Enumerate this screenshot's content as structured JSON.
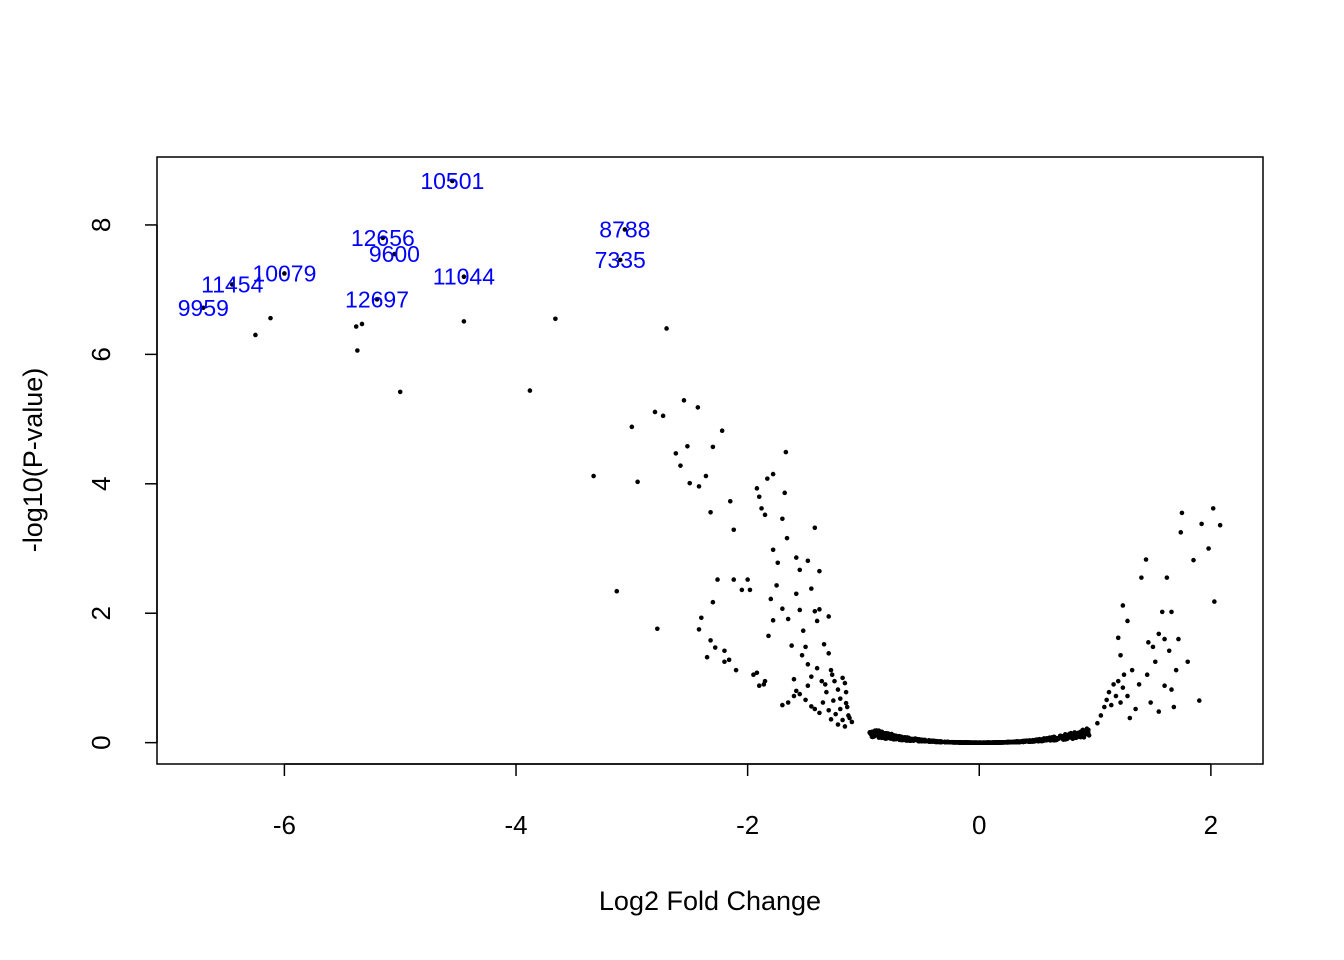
{
  "chart_data": {
    "type": "scatter",
    "title": "",
    "xlabel": "Log2 Fold Change",
    "ylabel": "-log10(P-value)",
    "xlim": [
      -7.1,
      2.45
    ],
    "ylim": [
      -0.33,
      9.05
    ],
    "x_ticks": [
      -6,
      -4,
      -2,
      0,
      2
    ],
    "x_tick_labels": [
      "-6",
      "-4",
      "-2",
      "0",
      "2"
    ],
    "y_ticks": [
      0,
      2,
      4,
      6,
      8
    ],
    "y_tick_labels": [
      "0",
      "2",
      "4",
      "6",
      "8"
    ],
    "grid": false,
    "legend": "none",
    "point_color": "#000000",
    "label_color": "#0000ff",
    "labeled_points": [
      {
        "label": "10501",
        "x": -4.55,
        "y": 8.68
      },
      {
        "label": "8788",
        "x": -3.06,
        "y": 7.93
      },
      {
        "label": "12656",
        "x": -5.15,
        "y": 7.8
      },
      {
        "label": "9600",
        "x": -5.05,
        "y": 7.55
      },
      {
        "label": "7335",
        "x": -3.1,
        "y": 7.46
      },
      {
        "label": "10079",
        "x": -6.0,
        "y": 7.25
      },
      {
        "label": "11044",
        "x": -4.45,
        "y": 7.2
      },
      {
        "label": "11454",
        "x": -6.45,
        "y": 7.08
      },
      {
        "label": "12697",
        "x": -5.2,
        "y": 6.85
      },
      {
        "label": "9959",
        "x": -6.7,
        "y": 6.72
      }
    ],
    "scatter_points": [
      [
        -6.25,
        6.3
      ],
      [
        -6.12,
        6.56
      ],
      [
        -5.38,
        6.43
      ],
      [
        -5.33,
        6.47
      ],
      [
        -5.37,
        6.06
      ],
      [
        -5.0,
        5.42
      ],
      [
        -4.45,
        6.51
      ],
      [
        -3.88,
        5.44
      ],
      [
        -3.66,
        6.55
      ],
      [
        -3.33,
        4.12
      ],
      [
        -3.13,
        2.34
      ],
      [
        -3.0,
        4.88
      ],
      [
        -2.95,
        4.03
      ],
      [
        -2.8,
        5.11
      ],
      [
        -2.73,
        5.05
      ],
      [
        -2.7,
        6.4
      ],
      [
        -2.78,
        1.76
      ],
      [
        -2.62,
        4.47
      ],
      [
        -2.55,
        5.29
      ],
      [
        -2.52,
        4.58
      ],
      [
        -2.58,
        4.28
      ],
      [
        -2.5,
        4.01
      ],
      [
        -2.43,
        5.18
      ],
      [
        -2.42,
        3.96
      ],
      [
        -2.36,
        4.12
      ],
      [
        -2.3,
        4.57
      ],
      [
        -2.22,
        4.82
      ],
      [
        -2.32,
        3.56
      ],
      [
        -2.15,
        3.73
      ],
      [
        -2.12,
        3.29
      ],
      [
        -1.92,
        3.93
      ],
      [
        -1.9,
        3.8
      ],
      [
        -1.88,
        3.62
      ],
      [
        -1.85,
        3.52
      ],
      [
        -1.83,
        4.08
      ],
      [
        -1.78,
        4.15
      ],
      [
        -1.67,
        4.49
      ],
      [
        -1.7,
        3.46
      ],
      [
        -1.68,
        3.86
      ],
      [
        -1.66,
        3.16
      ],
      [
        -1.58,
        2.86
      ],
      [
        -1.55,
        2.67
      ],
      [
        -1.48,
        2.81
      ],
      [
        -1.42,
        3.32
      ],
      [
        -1.38,
        2.65
      ],
      [
        -1.78,
        2.98
      ],
      [
        -1.74,
        2.78
      ],
      [
        -1.98,
        2.36
      ],
      [
        -2.0,
        2.52
      ],
      [
        -2.05,
        2.36
      ],
      [
        -2.12,
        2.52
      ],
      [
        -2.26,
        2.52
      ],
      [
        -2.3,
        2.17
      ],
      [
        -2.4,
        1.93
      ],
      [
        -2.42,
        1.75
      ],
      [
        -2.32,
        1.58
      ],
      [
        -2.28,
        1.47
      ],
      [
        -2.2,
        1.42
      ],
      [
        -2.16,
        1.28
      ],
      [
        -2.1,
        1.12
      ],
      [
        -2.35,
        1.32
      ],
      [
        -2.2,
        1.25
      ],
      [
        -1.95,
        1.05
      ],
      [
        -1.9,
        0.88
      ],
      [
        -1.85,
        0.95
      ],
      [
        -1.82,
        1.65
      ],
      [
        -1.78,
        1.89
      ],
      [
        -1.8,
        2.22
      ],
      [
        -1.75,
        2.43
      ],
      [
        -1.7,
        2.07
      ],
      [
        -1.65,
        1.91
      ],
      [
        -1.62,
        1.5
      ],
      [
        -1.58,
        2.3
      ],
      [
        -1.55,
        2.05
      ],
      [
        -1.52,
        1.73
      ],
      [
        -1.5,
        1.48
      ],
      [
        -1.48,
        1.21
      ],
      [
        -1.45,
        2.38
      ],
      [
        -1.42,
        2.03
      ],
      [
        -1.4,
        1.88
      ],
      [
        -1.38,
        2.06
      ],
      [
        -1.34,
        1.52
      ],
      [
        -1.3,
        1.95
      ],
      [
        -1.3,
        1.38
      ],
      [
        -1.28,
        1.12
      ],
      [
        -1.25,
        0.95
      ],
      [
        -1.22,
        0.82
      ],
      [
        -1.2,
        0.68
      ],
      [
        -1.18,
        1.0
      ],
      [
        -1.16,
        0.92
      ],
      [
        -1.15,
        0.78
      ],
      [
        -1.14,
        0.55
      ],
      [
        -1.13,
        0.42
      ],
      [
        -1.12,
        0.38
      ],
      [
        -1.1,
        0.32
      ],
      [
        -1.7,
        0.58
      ],
      [
        -1.65,
        0.62
      ],
      [
        -1.6,
        0.72
      ],
      [
        -1.55,
        0.75
      ],
      [
        -1.5,
        0.66
      ],
      [
        -1.48,
        0.88
      ],
      [
        -1.45,
        0.56
      ],
      [
        -1.42,
        0.52
      ],
      [
        -1.38,
        0.46
      ],
      [
        -1.35,
        0.62
      ],
      [
        -1.32,
        0.78
      ],
      [
        -1.3,
        0.5
      ],
      [
        -1.28,
        0.36
      ],
      [
        -1.26,
        0.65
      ],
      [
        -1.24,
        0.44
      ],
      [
        -1.22,
        0.28
      ],
      [
        -1.2,
        0.52
      ],
      [
        -1.18,
        0.35
      ],
      [
        -1.16,
        0.25
      ],
      [
        -1.15,
        0.61
      ],
      [
        -1.6,
        0.98
      ],
      [
        -1.58,
        0.8
      ],
      [
        -1.53,
        1.35
      ],
      [
        -1.45,
        1.02
      ],
      [
        -1.4,
        1.15
      ],
      [
        -1.36,
        0.95
      ],
      [
        -1.33,
        0.9
      ],
      [
        -1.27,
        1.05
      ],
      [
        -1.86,
        0.9
      ],
      [
        -1.92,
        1.08
      ],
      [
        1.02,
        0.3
      ],
      [
        1.05,
        0.42
      ],
      [
        1.08,
        0.55
      ],
      [
        1.1,
        0.66
      ],
      [
        1.12,
        0.78
      ],
      [
        1.14,
        0.58
      ],
      [
        1.16,
        0.9
      ],
      [
        1.18,
        0.72
      ],
      [
        1.2,
        0.95
      ],
      [
        1.22,
        0.62
      ],
      [
        1.24,
        0.85
      ],
      [
        1.25,
        1.05
      ],
      [
        1.22,
        1.35
      ],
      [
        1.2,
        1.62
      ],
      [
        1.24,
        2.12
      ],
      [
        1.28,
        1.88
      ],
      [
        1.32,
        1.12
      ],
      [
        1.35,
        0.52
      ],
      [
        1.38,
        0.9
      ],
      [
        1.4,
        2.55
      ],
      [
        1.44,
        2.83
      ],
      [
        1.46,
        1.55
      ],
      [
        1.5,
        1.48
      ],
      [
        1.52,
        1.25
      ],
      [
        1.55,
        1.68
      ],
      [
        1.58,
        2.02
      ],
      [
        1.6,
        1.6
      ],
      [
        1.62,
        2.55
      ],
      [
        1.64,
        1.42
      ],
      [
        1.66,
        0.82
      ],
      [
        1.68,
        0.55
      ],
      [
        1.7,
        1.12
      ],
      [
        1.72,
        1.6
      ],
      [
        1.74,
        3.25
      ],
      [
        1.75,
        3.55
      ],
      [
        1.8,
        1.25
      ],
      [
        1.85,
        2.82
      ],
      [
        1.9,
        0.65
      ],
      [
        1.92,
        3.38
      ],
      [
        1.98,
        3.0
      ],
      [
        2.02,
        3.62
      ],
      [
        2.03,
        2.18
      ],
      [
        2.08,
        3.36
      ],
      [
        1.48,
        0.62
      ],
      [
        1.55,
        0.48
      ],
      [
        1.6,
        0.88
      ],
      [
        1.28,
        0.72
      ],
      [
        1.3,
        0.38
      ],
      [
        1.45,
        1.05
      ],
      [
        1.66,
        2.02
      ]
    ]
  }
}
